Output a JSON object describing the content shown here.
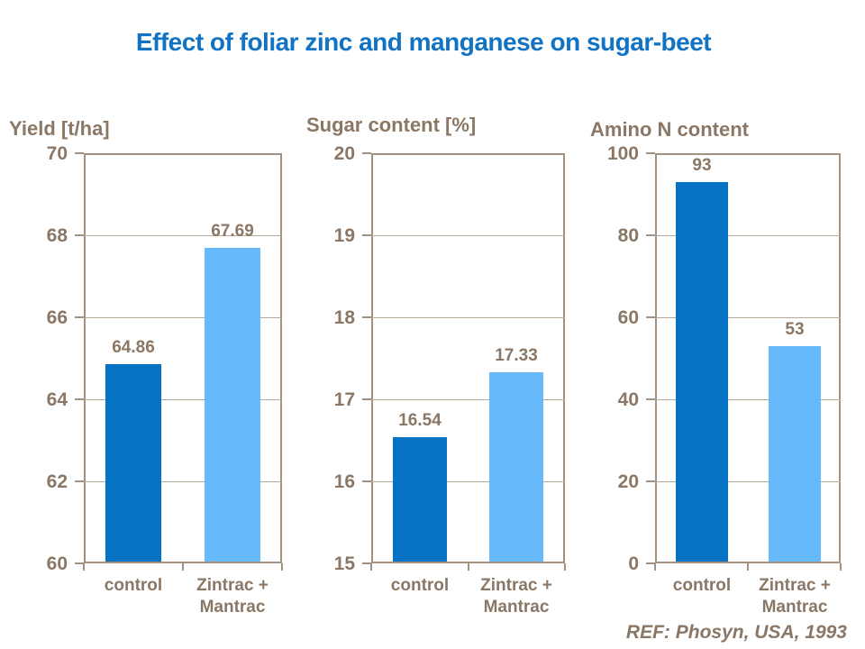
{
  "page": {
    "title": "Effect of foliar zinc and manganese on sugar-beet",
    "reference": "REF: Phosyn, USA, 1993"
  },
  "colors": {
    "title": "#1173C4",
    "text": "#8A7765",
    "axis": "#A29181",
    "grid": "#B5A898",
    "bar_control": "#0572C4",
    "bar_treated": "#66B9FA"
  },
  "chart_data": [
    {
      "type": "bar",
      "title": "Yield [t/ha]",
      "categories": [
        "control",
        "Zintrac +\nMantrac"
      ],
      "values": [
        64.86,
        67.69
      ],
      "value_labels": [
        "64.86",
        "67.69"
      ],
      "ylim": [
        60,
        70
      ],
      "yticks": [
        60,
        62,
        64,
        66,
        68,
        70
      ],
      "grid": true,
      "legend": "none",
      "bar_colors": [
        "#0572C4",
        "#66B9FA"
      ]
    },
    {
      "type": "bar",
      "title": "Sugar content [%]",
      "categories": [
        "control",
        "Zintrac +\nMantrac"
      ],
      "values": [
        16.54,
        17.33
      ],
      "value_labels": [
        "16.54",
        "17.33"
      ],
      "ylim": [
        15,
        20
      ],
      "yticks": [
        15,
        16,
        17,
        18,
        19,
        20
      ],
      "grid": true,
      "legend": "none",
      "bar_colors": [
        "#0572C4",
        "#66B9FA"
      ]
    },
    {
      "type": "bar",
      "title": "Amino N content",
      "categories": [
        "control",
        "Zintrac +\nMantrac"
      ],
      "values": [
        93,
        53
      ],
      "value_labels": [
        "93",
        "53"
      ],
      "ylim": [
        0,
        100
      ],
      "yticks": [
        0,
        20,
        40,
        60,
        80,
        100
      ],
      "grid": true,
      "legend": "none",
      "bar_colors": [
        "#0572C4",
        "#66B9FA"
      ]
    }
  ]
}
